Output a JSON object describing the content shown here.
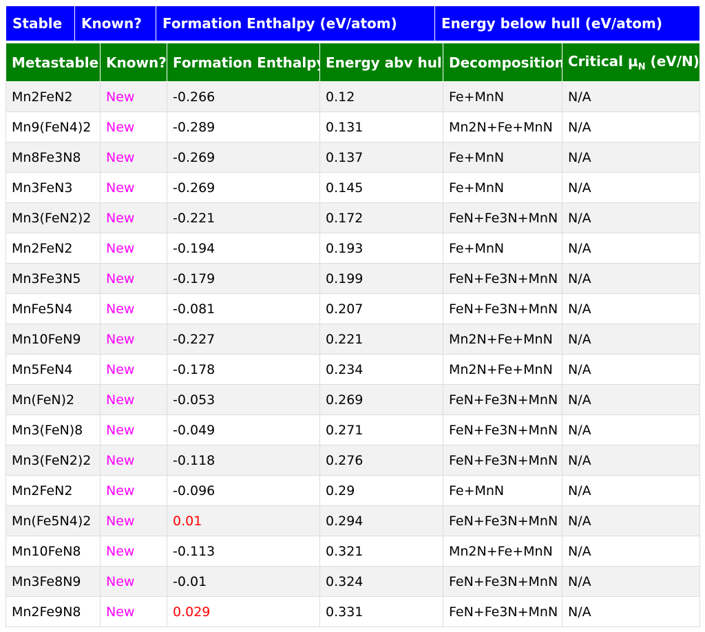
{
  "stable_header": {
    "col1": "Stable",
    "col2": "Known?",
    "col3": "Formation Enthalpy (eV/atom)",
    "col4": "Energy below hull (eV/atom)"
  },
  "metastable_header": {
    "col1": "Metastable",
    "col2": "Known?",
    "col3": "Formation Enthalpy",
    "col4": "Energy abv hull",
    "col5": "Decomposition",
    "col6_prefix": "Critical μ",
    "col6_sub": "N",
    "col6_suffix": " (eV/N)"
  },
  "colors": {
    "stable_header_bg": "#0000ff",
    "metastable_header_bg": "#008000",
    "known_new": "#ff00ff",
    "positive_enthalpy": "#ff0000"
  },
  "rows": [
    {
      "formula": "Mn2FeN2",
      "known": "New",
      "enthalpy": "-0.266",
      "hull": "0.12",
      "decomposition": "Fe+MnN",
      "critical": "N/A"
    },
    {
      "formula": "Mn9(FeN4)2",
      "known": "New",
      "enthalpy": "-0.289",
      "hull": "0.131",
      "decomposition": "Mn2N+Fe+MnN",
      "critical": "N/A"
    },
    {
      "formula": "Mn8Fe3N8",
      "known": "New",
      "enthalpy": "-0.269",
      "hull": "0.137",
      "decomposition": "Fe+MnN",
      "critical": "N/A"
    },
    {
      "formula": "Mn3FeN3",
      "known": "New",
      "enthalpy": "-0.269",
      "hull": "0.145",
      "decomposition": "Fe+MnN",
      "critical": "N/A"
    },
    {
      "formula": "Mn3(FeN2)2",
      "known": "New",
      "enthalpy": "-0.221",
      "hull": "0.172",
      "decomposition": "FeN+Fe3N+MnN",
      "critical": "N/A"
    },
    {
      "formula": "Mn2FeN2",
      "known": "New",
      "enthalpy": "-0.194",
      "hull": "0.193",
      "decomposition": "Fe+MnN",
      "critical": "N/A"
    },
    {
      "formula": "Mn3Fe3N5",
      "known": "New",
      "enthalpy": "-0.179",
      "hull": "0.199",
      "decomposition": "FeN+Fe3N+MnN",
      "critical": "N/A"
    },
    {
      "formula": "MnFe5N4",
      "known": "New",
      "enthalpy": "-0.081",
      "hull": "0.207",
      "decomposition": "FeN+Fe3N+MnN",
      "critical": "N/A"
    },
    {
      "formula": "Mn10FeN9",
      "known": "New",
      "enthalpy": "-0.227",
      "hull": "0.221",
      "decomposition": "Mn2N+Fe+MnN",
      "critical": "N/A"
    },
    {
      "formula": "Mn5FeN4",
      "known": "New",
      "enthalpy": "-0.178",
      "hull": "0.234",
      "decomposition": "Mn2N+Fe+MnN",
      "critical": "N/A"
    },
    {
      "formula": "Mn(FeN)2",
      "known": "New",
      "enthalpy": "-0.053",
      "hull": "0.269",
      "decomposition": "FeN+Fe3N+MnN",
      "critical": "N/A"
    },
    {
      "formula": "Mn3(FeN)8",
      "known": "New",
      "enthalpy": "-0.049",
      "hull": "0.271",
      "decomposition": "FeN+Fe3N+MnN",
      "critical": "N/A"
    },
    {
      "formula": "Mn3(FeN2)2",
      "known": "New",
      "enthalpy": "-0.118",
      "hull": "0.276",
      "decomposition": "FeN+Fe3N+MnN",
      "critical": "N/A"
    },
    {
      "formula": "Mn2FeN2",
      "known": "New",
      "enthalpy": "-0.096",
      "hull": "0.29",
      "decomposition": "Fe+MnN",
      "critical": "N/A"
    },
    {
      "formula": "Mn(Fe5N4)2",
      "known": "New",
      "enthalpy": "0.01",
      "hull": "0.294",
      "decomposition": "FeN+Fe3N+MnN",
      "critical": "N/A"
    },
    {
      "formula": "Mn10FeN8",
      "known": "New",
      "enthalpy": "-0.113",
      "hull": "0.321",
      "decomposition": "Mn2N+Fe+MnN",
      "critical": "N/A"
    },
    {
      "formula": "Mn3Fe8N9",
      "known": "New",
      "enthalpy": "-0.01",
      "hull": "0.324",
      "decomposition": "FeN+Fe3N+MnN",
      "critical": "N/A"
    },
    {
      "formula": "Mn2Fe9N8",
      "known": "New",
      "enthalpy": "0.029",
      "hull": "0.331",
      "decomposition": "FeN+Fe3N+MnN",
      "critical": "N/A"
    }
  ]
}
